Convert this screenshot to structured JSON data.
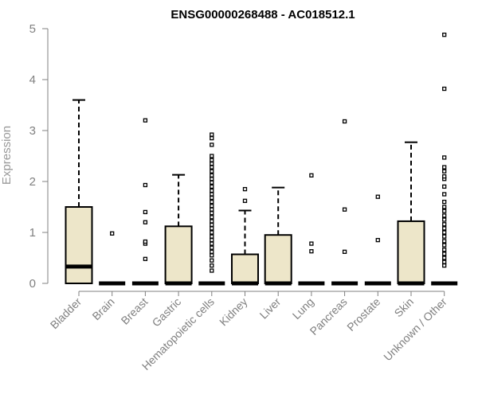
{
  "chart_data": {
    "type": "boxplot",
    "title": "ENSG00000268488 - AC018512.1",
    "ylabel": "Expression",
    "xlabel": "",
    "ylim": [
      0,
      5
    ],
    "yticks": [
      "0",
      "1",
      "2",
      "3",
      "4",
      "5"
    ],
    "box_fill": "#ede6c9",
    "grid": false,
    "categories": [
      "Bladder",
      "Brain",
      "Breast",
      "Gastric",
      "Hematopoietic cells",
      "Kidney",
      "Liver",
      "Lung",
      "Pancreas",
      "Prostate",
      "Skin",
      "Unknown / Other"
    ],
    "boxes": [
      {
        "q1": 0,
        "median": 0.33,
        "q3": 1.5,
        "whisker_low": 0,
        "whisker_high": 3.6,
        "outliers": []
      },
      {
        "q1": 0,
        "median": 0,
        "q3": 0,
        "whisker_low": 0,
        "whisker_high": 0,
        "outliers": [
          0.98
        ]
      },
      {
        "q1": 0,
        "median": 0,
        "q3": 0,
        "whisker_low": 0,
        "whisker_high": 0,
        "outliers": [
          0.48,
          0.78,
          0.82,
          1.2,
          1.4,
          1.93,
          3.2
        ]
      },
      {
        "q1": 0,
        "median": 0,
        "q3": 1.12,
        "whisker_low": 0,
        "whisker_high": 2.13,
        "outliers": []
      },
      {
        "q1": 0,
        "median": 0,
        "q3": 0,
        "whisker_low": 0,
        "whisker_high": 0,
        "outliers": [
          0.25,
          0.35,
          0.45,
          0.55,
          0.62,
          0.7,
          0.78,
          0.85,
          0.92,
          1.0,
          1.08,
          1.15,
          1.22,
          1.3,
          1.38,
          1.45,
          1.52,
          1.6,
          1.68,
          1.75,
          1.82,
          1.9,
          1.98,
          2.05,
          2.12,
          2.2,
          2.28,
          2.35,
          2.42,
          2.5,
          2.72,
          2.85,
          2.92
        ]
      },
      {
        "q1": 0,
        "median": 0,
        "q3": 0.57,
        "whisker_low": 0,
        "whisker_high": 1.43,
        "outliers": [
          1.62,
          1.85
        ]
      },
      {
        "q1": 0,
        "median": 0,
        "q3": 0.95,
        "whisker_low": 0,
        "whisker_high": 1.88,
        "outliers": []
      },
      {
        "q1": 0,
        "median": 0,
        "q3": 0,
        "whisker_low": 0,
        "whisker_high": 0,
        "outliers": [
          0.63,
          0.78,
          2.12
        ]
      },
      {
        "q1": 0,
        "median": 0,
        "q3": 0,
        "whisker_low": 0,
        "whisker_high": 0,
        "outliers": [
          0.62,
          1.45,
          3.18
        ]
      },
      {
        "q1": 0,
        "median": 0,
        "q3": 0,
        "whisker_low": 0,
        "whisker_high": 0,
        "outliers": [
          0.85,
          1.7
        ]
      },
      {
        "q1": 0,
        "median": 0,
        "q3": 1.22,
        "whisker_low": 0,
        "whisker_high": 2.77,
        "outliers": []
      },
      {
        "q1": 0,
        "median": 0,
        "q3": 0,
        "whisker_low": 0,
        "whisker_high": 0,
        "outliers": [
          0.35,
          0.42,
          0.5,
          0.58,
          0.66,
          0.75,
          0.83,
          0.92,
          1.0,
          1.08,
          1.16,
          1.25,
          1.33,
          1.42,
          1.5,
          1.6,
          1.75,
          1.9,
          2.05,
          2.1,
          2.2,
          2.28,
          2.47,
          3.82,
          4.88
        ]
      }
    ]
  }
}
